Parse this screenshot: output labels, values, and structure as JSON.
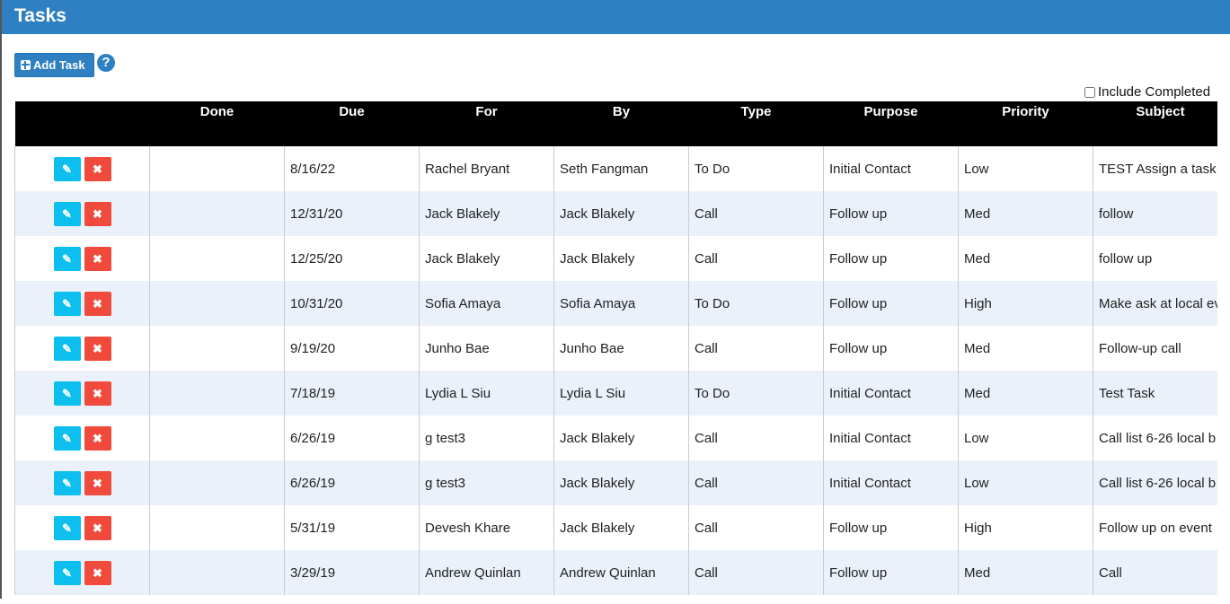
{
  "header": {
    "title": "Tasks"
  },
  "toolbar": {
    "add_label": "Add Task",
    "help_icon": "question-circle-icon",
    "include_completed_label": "Include Completed",
    "include_completed_checked": false
  },
  "colors": {
    "brand": "#2f80c2",
    "edit": "#0dbfee",
    "delete": "#ef4a3c"
  },
  "table": {
    "columns": [
      "",
      "Done",
      "Due",
      "For",
      "By",
      "Type",
      "Purpose",
      "Priority",
      "Subject"
    ],
    "rows": [
      {
        "due": "8/16/22",
        "for": "Rachel Bryant",
        "by": "Seth Fangman",
        "type": "To Do",
        "purpose": "Initial Contact",
        "priority": "Low",
        "subject": "TEST Assign a task t"
      },
      {
        "due": "12/31/20",
        "for": "Jack Blakely",
        "by": "Jack Blakely",
        "type": "Call",
        "purpose": "Follow up",
        "priority": "Med",
        "subject": "follow"
      },
      {
        "due": "12/25/20",
        "for": "Jack Blakely",
        "by": "Jack Blakely",
        "type": "Call",
        "purpose": "Follow up",
        "priority": "Med",
        "subject": "follow up"
      },
      {
        "due": "10/31/20",
        "for": "Sofia Amaya",
        "by": "Sofia Amaya",
        "type": "To Do",
        "purpose": "Follow up",
        "priority": "High",
        "subject": "Make ask at local ev"
      },
      {
        "due": "9/19/20",
        "for": "Junho Bae",
        "by": "Junho Bae",
        "type": "Call",
        "purpose": "Follow up",
        "priority": "Med",
        "subject": "Follow-up call"
      },
      {
        "due": "7/18/19",
        "for": "Lydia L Siu",
        "by": "Lydia L Siu",
        "type": "To Do",
        "purpose": "Initial Contact",
        "priority": "Med",
        "subject": "Test Task"
      },
      {
        "due": "6/26/19",
        "for": "g test3",
        "by": "Jack Blakely",
        "type": "Call",
        "purpose": "Initial Contact",
        "priority": "Low",
        "subject": "Call list 6-26 local b"
      },
      {
        "due": "6/26/19",
        "for": "g test3",
        "by": "Jack Blakely",
        "type": "Call",
        "purpose": "Initial Contact",
        "priority": "Low",
        "subject": "Call list 6-26 local b"
      },
      {
        "due": "5/31/19",
        "for": "Devesh Khare",
        "by": "Jack Blakely",
        "type": "Call",
        "purpose": "Follow up",
        "priority": "High",
        "subject": "Follow up on event"
      },
      {
        "due": "3/29/19",
        "for": "Andrew Quinlan",
        "by": "Andrew Quinlan",
        "type": "Call",
        "purpose": "Follow up",
        "priority": "Med",
        "subject": "Call"
      }
    ]
  }
}
